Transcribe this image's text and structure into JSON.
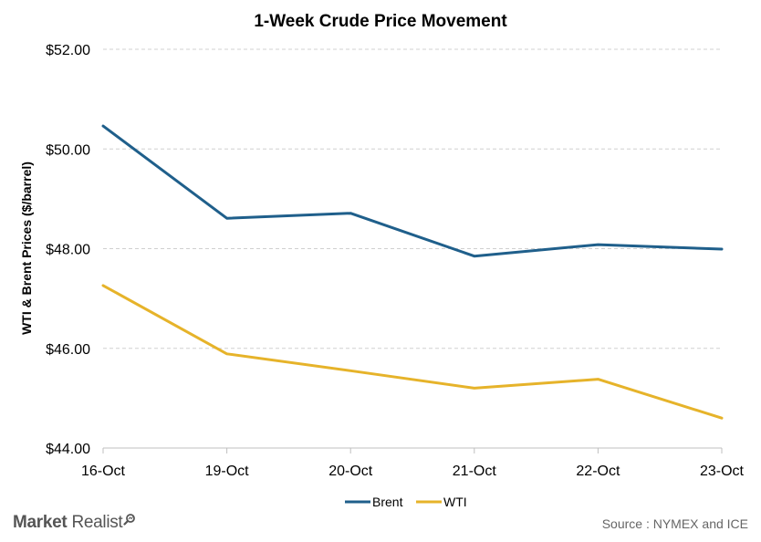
{
  "chart_data": {
    "type": "line",
    "title": "1-Week Crude Price Movement",
    "xlabel": "",
    "ylabel": "WTI & Brent Prices ($/barrel)",
    "categories": [
      "16-Oct",
      "19-Oct",
      "20-Oct",
      "21-Oct",
      "22-Oct",
      "23-Oct"
    ],
    "ylim": [
      44,
      52
    ],
    "yticks": [
      44,
      46,
      48,
      50,
      52
    ],
    "ytick_labels": [
      "$44.00",
      "$46.00",
      "$48.00",
      "$50.00",
      "$52.00"
    ],
    "grid": "horizontal-dashed",
    "legend_position": "bottom",
    "series": [
      {
        "name": "Brent",
        "color": "#1f5f8b",
        "values": [
          50.46,
          48.61,
          48.71,
          47.85,
          48.08,
          47.99
        ]
      },
      {
        "name": "WTI",
        "color": "#e6b32a",
        "values": [
          47.26,
          45.89,
          45.55,
          45.2,
          45.38,
          44.6
        ]
      }
    ]
  },
  "footer": {
    "brand_part1": "Market",
    "brand_part2": "Realist",
    "brand_icon": "magnifier-icon",
    "source": "Source : NYMEX  and ICE"
  }
}
